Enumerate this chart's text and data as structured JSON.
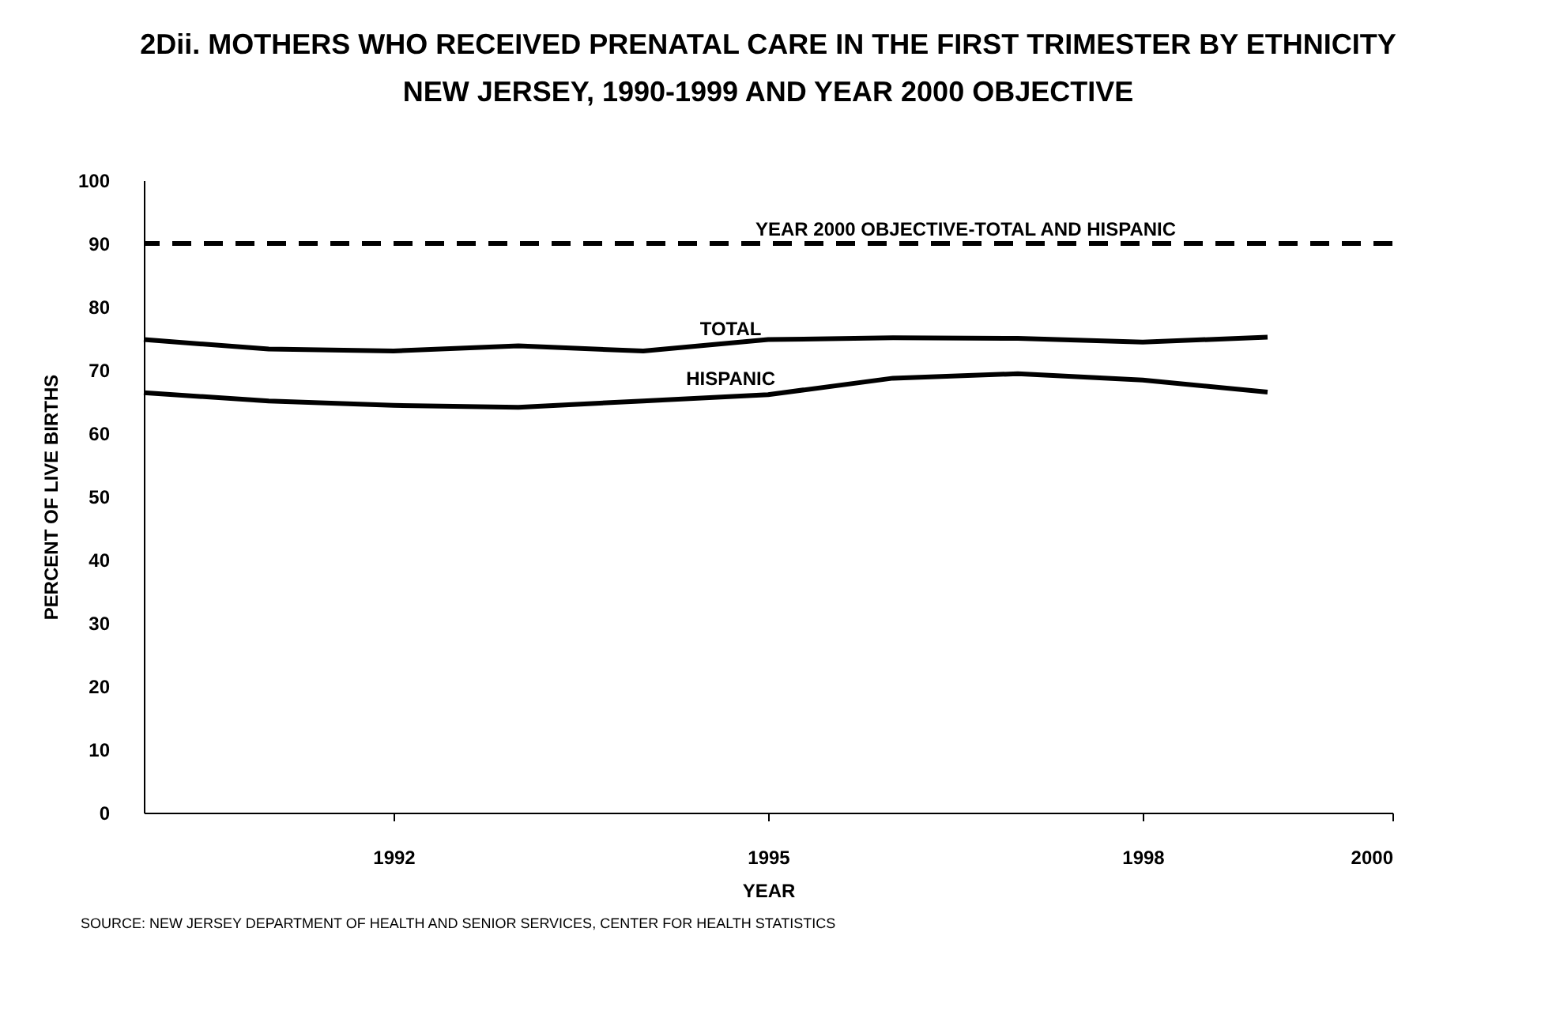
{
  "chart_data": {
    "type": "line",
    "title": "2Dii. MOTHERS WHO RECEIVED PRENATAL CARE IN THE FIRST TRIMESTER BY ETHNICITY",
    "subtitle": "NEW JERSEY, 1990-1999 AND YEAR 2000 OBJECTIVE",
    "xlabel": "YEAR",
    "ylabel": "PERCENT OF LIVE BIRTHS",
    "x": [
      1990,
      1991,
      1992,
      1993,
      1994,
      1995,
      1996,
      1997,
      1998,
      1999
    ],
    "series": [
      {
        "name": "TOTAL",
        "color": "#000000",
        "values": [
          74.8,
          73.3,
          73.0,
          73.8,
          73.0,
          74.8,
          75.1,
          75.0,
          74.4,
          75.2
        ]
      },
      {
        "name": "HISPANIC",
        "color": "#000000",
        "values": [
          66.4,
          65.1,
          64.4,
          64.1,
          65.1,
          66.1,
          68.7,
          69.4,
          68.4,
          66.5
        ]
      }
    ],
    "xlim": [
      1990,
      2000
    ],
    "xticks": [
      1992,
      1995,
      1998,
      2000
    ],
    "ylim": [
      0,
      100
    ],
    "yticks": [
      0,
      10,
      20,
      30,
      40,
      50,
      60,
      70,
      80,
      90,
      100
    ],
    "ref_lines": [
      {
        "axis": "y",
        "value": 90,
        "label": "YEAR 2000 OBJECTIVE-TOTAL AND HISPANIC",
        "color": "#000000",
        "line_style": "dashed"
      }
    ],
    "annotations": [
      "SOURCE:  NEW JERSEY DEPARTMENT OF HEALTH AND SENIOR SERVICES, CENTER FOR HEALTH STATISTICS"
    ],
    "grid": false,
    "marker": "none",
    "line_style": "solid"
  }
}
